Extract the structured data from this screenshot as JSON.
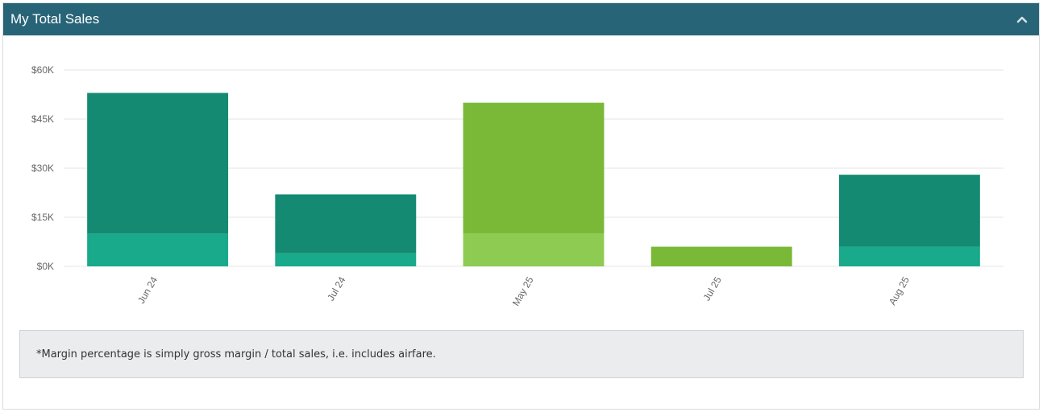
{
  "panel": {
    "title": "My Total Sales",
    "collapse_icon": "chevron-up-icon"
  },
  "colors": {
    "header_bg": "#286477",
    "margin_teal": "#19a98b",
    "sales_teal": "#138a71",
    "margin_green": "#8dcb52",
    "sales_green": "#79b937",
    "grid": "#e6e6e6"
  },
  "chart_data": {
    "type": "bar",
    "stacked": true,
    "categories": [
      "Jun 24",
      "Jul 24",
      "May 25",
      "Jul 25",
      "Aug 25"
    ],
    "series": [
      {
        "values": [
          10000,
          4000,
          10000,
          0,
          6000
        ]
      },
      {
        "values": [
          43000,
          18000,
          40000,
          6000,
          22000
        ]
      }
    ],
    "bar_colors": [
      [
        "#19a98b",
        "#138a71"
      ],
      [
        "#19a98b",
        "#138a71"
      ],
      [
        "#8dcb52",
        "#79b937"
      ],
      [
        "#8dcb52",
        "#79b937"
      ],
      [
        "#19a98b",
        "#138a71"
      ]
    ],
    "yticks": [
      0,
      15000,
      30000,
      45000,
      60000
    ],
    "ytick_labels": [
      "$0K",
      "$15K",
      "$30K",
      "$45K",
      "$60K"
    ],
    "ylim": [
      0,
      60000
    ],
    "grid": true,
    "xtick_rotation": "-60deg"
  },
  "footnote": "*Margin percentage is simply gross margin / total sales, i.e. includes airfare."
}
